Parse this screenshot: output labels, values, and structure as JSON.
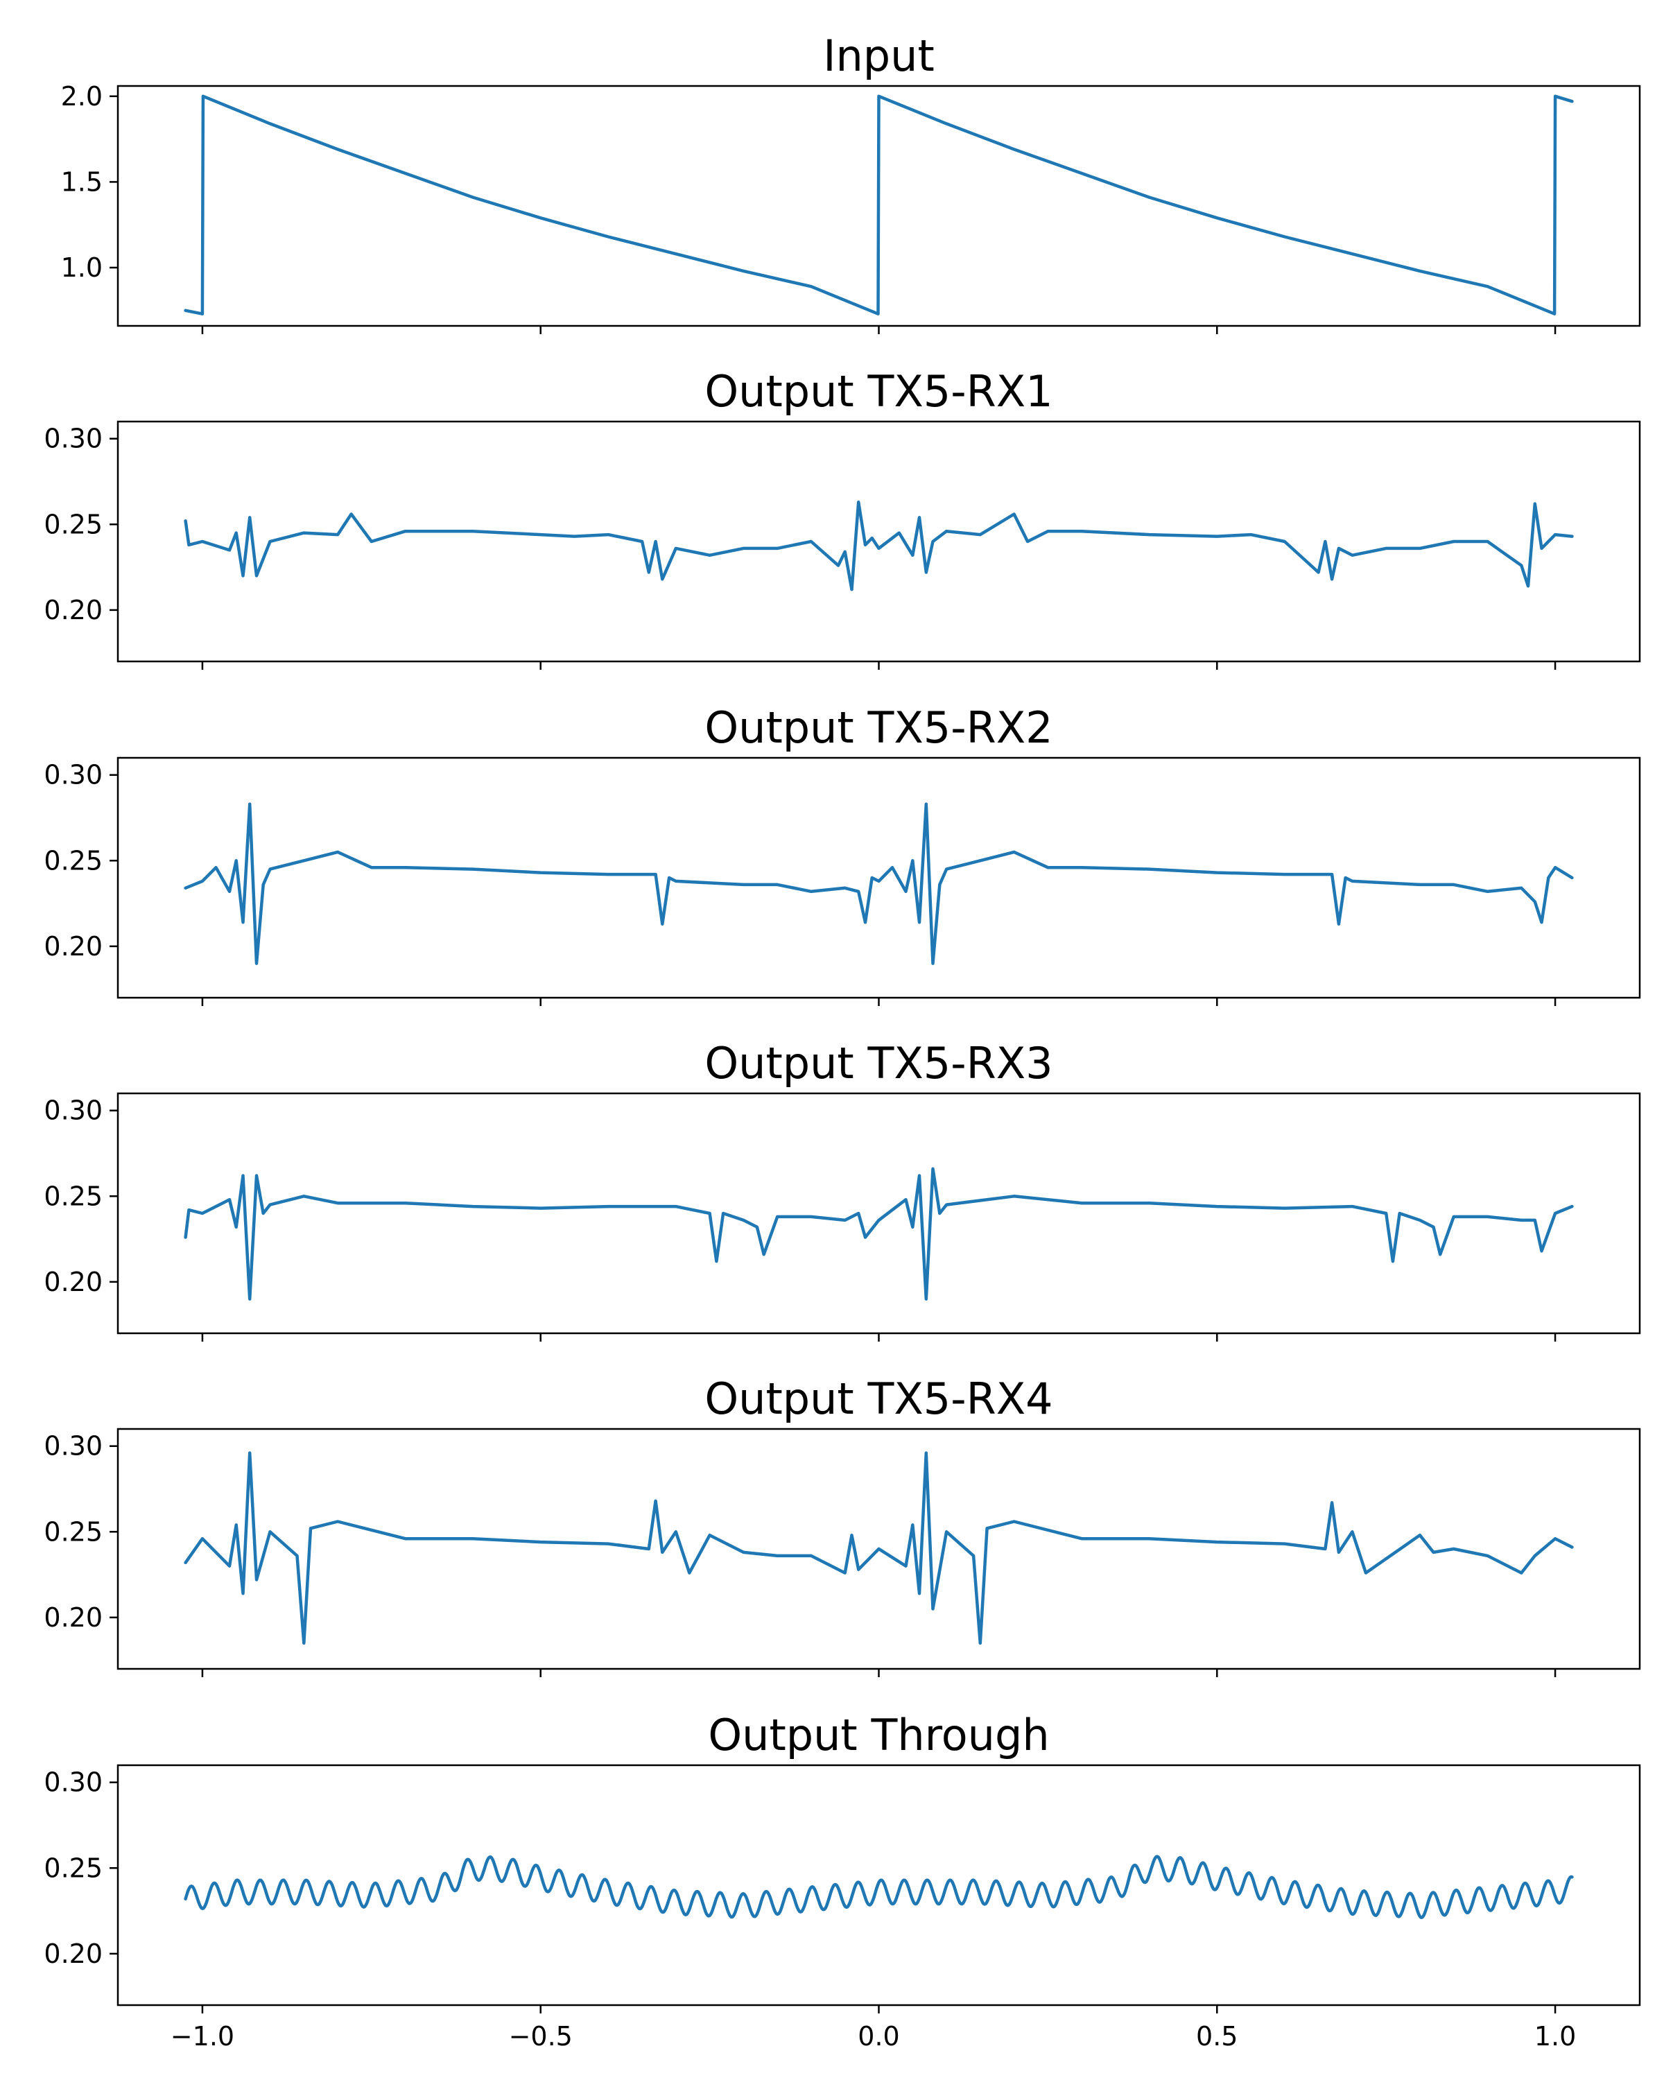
{
  "colors": {
    "line": "#1f77b4",
    "axes": "#000000",
    "background": "#ffffff"
  },
  "chart_data": {
    "type": "line",
    "shared_x": true,
    "xlim": [
      -1.125,
      1.125
    ],
    "xticks": [
      -1.0,
      -0.5,
      0.0,
      0.5,
      1.0
    ],
    "xtick_labels": [
      "−1.0",
      "−0.5",
      "0.0",
      "0.5",
      "1.0"
    ],
    "grid": false,
    "legend": "none",
    "panels": [
      {
        "title": "Input",
        "ylim": [
          0.66,
          2.06
        ],
        "yticks": [
          1.0,
          1.5,
          2.0
        ],
        "ytick_labels": [
          "1.0",
          "1.5",
          "2.0"
        ],
        "series": [
          {
            "x": [
              -1.025,
              -1.0,
              -0.999,
              -0.9,
              -0.8,
              -0.7,
              -0.6,
              -0.5,
              -0.4,
              -0.3,
              -0.2,
              -0.1,
              -0.001,
              0.0,
              0.1,
              0.2,
              0.3,
              0.4,
              0.5,
              0.6,
              0.7,
              0.8,
              0.9,
              0.999,
              1.0,
              1.025
            ],
            "y": [
              0.75,
              0.73,
              2.0,
              1.84,
              1.69,
              1.55,
              1.41,
              1.29,
              1.18,
              1.08,
              0.98,
              0.89,
              0.73,
              2.0,
              1.84,
              1.69,
              1.55,
              1.41,
              1.29,
              1.18,
              1.08,
              0.98,
              0.89,
              0.73,
              2.0,
              1.97
            ]
          }
        ]
      },
      {
        "title": "Output TX5-RX1",
        "ylim": [
          0.17,
          0.31
        ],
        "yticks": [
          0.2,
          0.25,
          0.3
        ],
        "ytick_labels": [
          "0.20",
          "0.25",
          "0.30"
        ],
        "series": [
          {
            "x": [
              -1.025,
              -1.02,
              -1.0,
              -0.96,
              -0.95,
              -0.94,
              -0.93,
              -0.92,
              -0.9,
              -0.85,
              -0.8,
              -0.78,
              -0.75,
              -0.7,
              -0.6,
              -0.5,
              -0.45,
              -0.4,
              -0.35,
              -0.34,
              -0.33,
              -0.32,
              -0.3,
              -0.25,
              -0.2,
              -0.15,
              -0.1,
              -0.06,
              -0.05,
              -0.04,
              -0.03,
              -0.02,
              -0.01,
              0.0,
              0.03,
              0.05,
              0.06,
              0.07,
              0.08,
              0.1,
              0.15,
              0.2,
              0.22,
              0.25,
              0.3,
              0.4,
              0.5,
              0.55,
              0.6,
              0.65,
              0.66,
              0.67,
              0.68,
              0.7,
              0.75,
              0.8,
              0.85,
              0.9,
              0.95,
              0.96,
              0.97,
              0.98,
              0.99,
              1.0,
              1.025
            ],
            "y": [
              0.252,
              0.238,
              0.24,
              0.235,
              0.245,
              0.22,
              0.254,
              0.22,
              0.24,
              0.245,
              0.244,
              0.256,
              0.24,
              0.246,
              0.246,
              0.244,
              0.243,
              0.244,
              0.24,
              0.222,
              0.24,
              0.218,
              0.236,
              0.232,
              0.236,
              0.236,
              0.24,
              0.226,
              0.234,
              0.212,
              0.263,
              0.238,
              0.242,
              0.236,
              0.245,
              0.232,
              0.254,
              0.222,
              0.24,
              0.246,
              0.244,
              0.256,
              0.24,
              0.246,
              0.246,
              0.244,
              0.243,
              0.244,
              0.24,
              0.222,
              0.24,
              0.218,
              0.236,
              0.232,
              0.236,
              0.236,
              0.24,
              0.24,
              0.226,
              0.214,
              0.262,
              0.236,
              0.24,
              0.244,
              0.243
            ]
          }
        ]
      },
      {
        "title": "Output TX5-RX2",
        "ylim": [
          0.17,
          0.31
        ],
        "yticks": [
          0.2,
          0.25,
          0.3
        ],
        "ytick_labels": [
          "0.20",
          "0.25",
          "0.30"
        ],
        "series": [
          {
            "x": [
              -1.025,
              -1.0,
              -0.98,
              -0.96,
              -0.95,
              -0.94,
              -0.93,
              -0.92,
              -0.91,
              -0.9,
              -0.85,
              -0.8,
              -0.75,
              -0.7,
              -0.6,
              -0.5,
              -0.4,
              -0.33,
              -0.32,
              -0.31,
              -0.3,
              -0.2,
              -0.15,
              -0.1,
              -0.05,
              -0.03,
              -0.02,
              -0.01,
              0.0,
              0.02,
              0.04,
              0.05,
              0.06,
              0.07,
              0.08,
              0.09,
              0.1,
              0.15,
              0.2,
              0.25,
              0.3,
              0.4,
              0.5,
              0.6,
              0.67,
              0.68,
              0.69,
              0.7,
              0.8,
              0.85,
              0.9,
              0.95,
              0.97,
              0.98,
              0.99,
              1.0,
              1.025
            ],
            "y": [
              0.234,
              0.238,
              0.246,
              0.232,
              0.25,
              0.214,
              0.283,
              0.19,
              0.236,
              0.245,
              0.25,
              0.255,
              0.246,
              0.246,
              0.245,
              0.243,
              0.242,
              0.242,
              0.213,
              0.24,
              0.238,
              0.236,
              0.236,
              0.232,
              0.234,
              0.232,
              0.214,
              0.24,
              0.238,
              0.246,
              0.232,
              0.25,
              0.214,
              0.283,
              0.19,
              0.236,
              0.245,
              0.25,
              0.255,
              0.246,
              0.246,
              0.245,
              0.243,
              0.242,
              0.242,
              0.213,
              0.24,
              0.238,
              0.236,
              0.236,
              0.232,
              0.234,
              0.226,
              0.214,
              0.24,
              0.246,
              0.24
            ]
          }
        ]
      },
      {
        "title": "Output TX5-RX3",
        "ylim": [
          0.17,
          0.31
        ],
        "yticks": [
          0.2,
          0.25,
          0.3
        ],
        "ytick_labels": [
          "0.20",
          "0.25",
          "0.30"
        ],
        "series": [
          {
            "x": [
              -1.025,
              -1.02,
              -1.0,
              -0.96,
              -0.95,
              -0.94,
              -0.93,
              -0.92,
              -0.91,
              -0.9,
              -0.85,
              -0.8,
              -0.7,
              -0.6,
              -0.5,
              -0.4,
              -0.3,
              -0.25,
              -0.24,
              -0.23,
              -0.2,
              -0.18,
              -0.17,
              -0.15,
              -0.1,
              -0.05,
              -0.03,
              -0.02,
              0.0,
              0.04,
              0.05,
              0.06,
              0.07,
              0.08,
              0.09,
              0.1,
              0.2,
              0.3,
              0.4,
              0.5,
              0.6,
              0.7,
              0.75,
              0.76,
              0.77,
              0.8,
              0.82,
              0.83,
              0.85,
              0.9,
              0.95,
              0.97,
              0.98,
              1.0,
              1.025
            ],
            "y": [
              0.226,
              0.242,
              0.24,
              0.248,
              0.232,
              0.262,
              0.19,
              0.262,
              0.24,
              0.245,
              0.25,
              0.246,
              0.246,
              0.244,
              0.243,
              0.244,
              0.244,
              0.24,
              0.212,
              0.24,
              0.236,
              0.232,
              0.216,
              0.238,
              0.238,
              0.236,
              0.24,
              0.226,
              0.236,
              0.248,
              0.232,
              0.262,
              0.19,
              0.266,
              0.24,
              0.245,
              0.25,
              0.246,
              0.246,
              0.244,
              0.243,
              0.244,
              0.24,
              0.212,
              0.24,
              0.236,
              0.232,
              0.216,
              0.238,
              0.238,
              0.236,
              0.236,
              0.218,
              0.24,
              0.244
            ]
          }
        ]
      },
      {
        "title": "Output TX5-RX4",
        "ylim": [
          0.17,
          0.31
        ],
        "yticks": [
          0.2,
          0.25,
          0.3
        ],
        "ytick_labels": [
          "0.20",
          "0.25",
          "0.30"
        ],
        "series": [
          {
            "x": [
              -1.025,
              -1.0,
              -0.96,
              -0.95,
              -0.94,
              -0.93,
              -0.92,
              -0.9,
              -0.86,
              -0.85,
              -0.84,
              -0.8,
              -0.7,
              -0.6,
              -0.5,
              -0.4,
              -0.34,
              -0.33,
              -0.32,
              -0.3,
              -0.28,
              -0.25,
              -0.2,
              -0.15,
              -0.1,
              -0.05,
              -0.04,
              -0.03,
              0.0,
              0.04,
              0.05,
              0.06,
              0.07,
              0.08,
              0.1,
              0.14,
              0.15,
              0.16,
              0.2,
              0.3,
              0.4,
              0.5,
              0.6,
              0.66,
              0.67,
              0.68,
              0.7,
              0.72,
              0.8,
              0.82,
              0.85,
              0.9,
              0.95,
              0.97,
              1.0,
              1.025
            ],
            "y": [
              0.232,
              0.246,
              0.23,
              0.254,
              0.214,
              0.296,
              0.222,
              0.25,
              0.236,
              0.185,
              0.252,
              0.256,
              0.246,
              0.246,
              0.244,
              0.243,
              0.24,
              0.268,
              0.238,
              0.25,
              0.226,
              0.248,
              0.238,
              0.236,
              0.236,
              0.226,
              0.248,
              0.228,
              0.24,
              0.23,
              0.254,
              0.214,
              0.296,
              0.205,
              0.25,
              0.236,
              0.185,
              0.252,
              0.256,
              0.246,
              0.246,
              0.244,
              0.243,
              0.24,
              0.267,
              0.238,
              0.25,
              0.226,
              0.248,
              0.238,
              0.24,
              0.236,
              0.226,
              0.236,
              0.246,
              0.241
            ]
          }
        ]
      },
      {
        "title": "Output Through",
        "ylim": [
          0.17,
          0.31
        ],
        "yticks": [
          0.2,
          0.25,
          0.3
        ],
        "ytick_labels": [
          "0.20",
          "0.25",
          "0.30"
        ],
        "series": [
          {
            "x": [
              -1.025,
              -0.95,
              -0.85,
              -0.75,
              -0.65,
              -0.6,
              -0.55,
              -0.5,
              -0.4,
              -0.3,
              -0.2,
              -0.1,
              0.0,
              0.05,
              0.15,
              0.25,
              0.35,
              0.4,
              0.45,
              0.5,
              0.6,
              0.7,
              0.8,
              0.9,
              1.0,
              1.025
            ],
            "y": [
              0.232,
              0.236,
              0.236,
              0.234,
              0.238,
              0.25,
              0.249,
              0.244,
              0.236,
              0.23,
              0.228,
              0.232,
              0.236,
              0.236,
              0.236,
              0.234,
              0.238,
              0.25,
              0.249,
              0.244,
              0.236,
              0.23,
              0.228,
              0.232,
              0.236,
              0.238
            ],
            "ripple": {
              "amplitude": 0.007,
              "period": 0.034
            }
          }
        ]
      }
    ]
  }
}
